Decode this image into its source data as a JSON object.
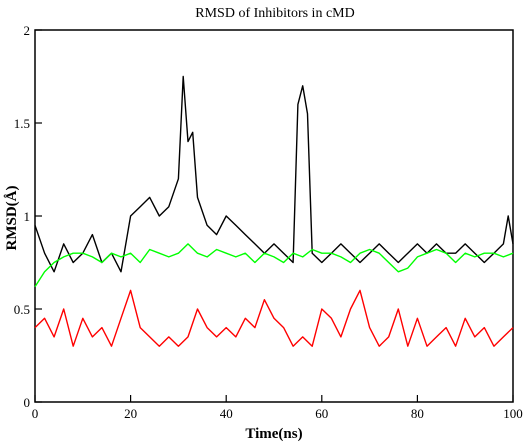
{
  "chart_data": {
    "type": "line",
    "title": "RMSD of Inhibitors in cMD",
    "xlabel": "Time(ns)",
    "ylabel": "RMSD(Å)",
    "xlim": [
      0,
      100
    ],
    "ylim": [
      0,
      2
    ],
    "xticks": [
      0,
      20,
      40,
      60,
      80,
      100
    ],
    "yticks": [
      0,
      0.5,
      1,
      1.5,
      2
    ],
    "grid": false,
    "legend": "none",
    "series": [
      {
        "color": "#000000",
        "x": [
          0,
          2,
          4,
          6,
          8,
          10,
          12,
          14,
          16,
          18,
          20,
          22,
          24,
          26,
          28,
          30,
          31,
          32,
          33,
          34,
          36,
          38,
          40,
          42,
          44,
          46,
          48,
          50,
          52,
          54,
          55,
          56,
          57,
          58,
          60,
          62,
          64,
          66,
          68,
          70,
          72,
          74,
          76,
          78,
          80,
          82,
          84,
          86,
          88,
          90,
          92,
          94,
          96,
          98,
          99,
          100
        ],
        "y": [
          0.95,
          0.8,
          0.7,
          0.85,
          0.75,
          0.8,
          0.9,
          0.75,
          0.8,
          0.7,
          1.0,
          1.05,
          1.1,
          1.0,
          1.05,
          1.2,
          1.75,
          1.4,
          1.45,
          1.1,
          0.95,
          0.9,
          1.0,
          0.95,
          0.9,
          0.85,
          0.8,
          0.85,
          0.8,
          0.75,
          1.6,
          1.7,
          1.55,
          0.8,
          0.75,
          0.8,
          0.85,
          0.8,
          0.75,
          0.8,
          0.85,
          0.8,
          0.75,
          0.8,
          0.85,
          0.8,
          0.85,
          0.8,
          0.8,
          0.85,
          0.8,
          0.75,
          0.8,
          0.85,
          1.0,
          0.85
        ]
      },
      {
        "color": "#ff0000",
        "x": [
          0,
          2,
          4,
          6,
          8,
          10,
          12,
          14,
          16,
          18,
          20,
          22,
          24,
          26,
          28,
          30,
          32,
          34,
          36,
          38,
          40,
          42,
          44,
          46,
          48,
          50,
          52,
          54,
          56,
          58,
          60,
          62,
          64,
          66,
          68,
          70,
          72,
          74,
          76,
          78,
          80,
          82,
          84,
          86,
          88,
          90,
          92,
          94,
          96,
          98,
          100
        ],
        "y": [
          0.4,
          0.45,
          0.35,
          0.5,
          0.3,
          0.45,
          0.35,
          0.4,
          0.3,
          0.45,
          0.6,
          0.4,
          0.35,
          0.3,
          0.35,
          0.3,
          0.35,
          0.5,
          0.4,
          0.35,
          0.4,
          0.35,
          0.45,
          0.4,
          0.55,
          0.45,
          0.4,
          0.3,
          0.35,
          0.3,
          0.5,
          0.45,
          0.35,
          0.5,
          0.6,
          0.4,
          0.3,
          0.35,
          0.5,
          0.3,
          0.45,
          0.3,
          0.35,
          0.4,
          0.3,
          0.45,
          0.35,
          0.4,
          0.3,
          0.35,
          0.4
        ]
      },
      {
        "color": "#00ff00",
        "x": [
          0,
          2,
          4,
          6,
          8,
          10,
          12,
          14,
          16,
          18,
          20,
          22,
          24,
          26,
          28,
          30,
          32,
          34,
          36,
          38,
          40,
          42,
          44,
          46,
          48,
          50,
          52,
          54,
          56,
          58,
          60,
          62,
          64,
          66,
          68,
          70,
          72,
          74,
          76,
          78,
          80,
          82,
          84,
          86,
          88,
          90,
          92,
          94,
          96,
          98,
          100
        ],
        "y": [
          0.62,
          0.7,
          0.75,
          0.78,
          0.8,
          0.8,
          0.78,
          0.75,
          0.8,
          0.78,
          0.8,
          0.75,
          0.82,
          0.8,
          0.78,
          0.8,
          0.85,
          0.8,
          0.78,
          0.82,
          0.8,
          0.78,
          0.8,
          0.75,
          0.8,
          0.78,
          0.75,
          0.8,
          0.78,
          0.82,
          0.8,
          0.8,
          0.78,
          0.75,
          0.8,
          0.82,
          0.8,
          0.75,
          0.7,
          0.72,
          0.78,
          0.8,
          0.82,
          0.8,
          0.75,
          0.8,
          0.78,
          0.8,
          0.8,
          0.78,
          0.8
        ]
      }
    ]
  }
}
